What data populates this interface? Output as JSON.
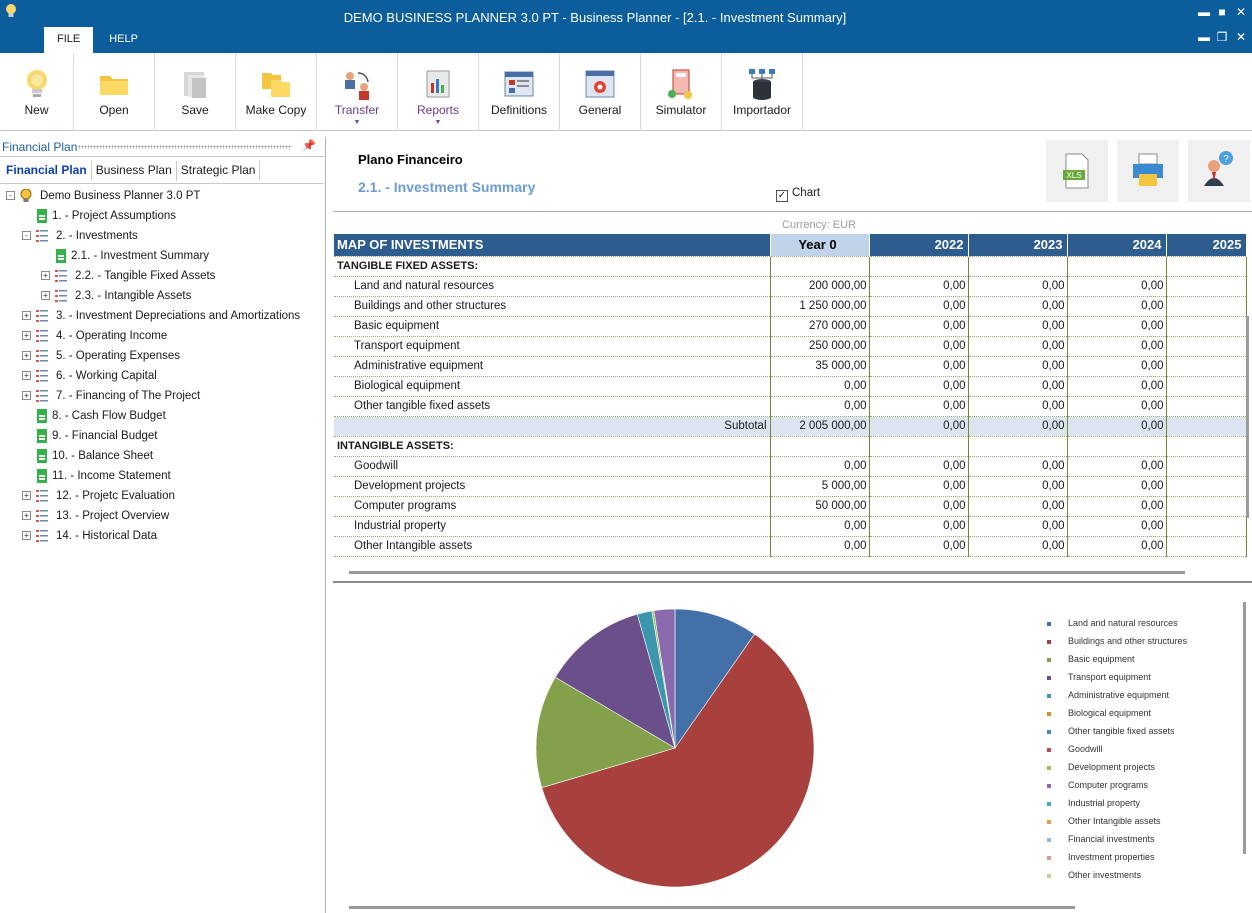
{
  "window": {
    "title": "DEMO BUSINESS PLANNER 3.0 PT - Business Planner - [2.1. - Investment Summary]",
    "menu_tabs": [
      "FILE",
      "HELP"
    ]
  },
  "ribbon": [
    {
      "label": "New",
      "icon": "lightbulb-icon"
    },
    {
      "label": "Open",
      "icon": "folder-icon"
    },
    {
      "label": "Save",
      "icon": "save-icon"
    },
    {
      "label": "Make Copy",
      "icon": "copy-icon"
    },
    {
      "label": "Transfer",
      "icon": "transfer-icon",
      "dropdown": true
    },
    {
      "label": "Reports",
      "icon": "reports-icon",
      "dropdown": true
    },
    {
      "label": "Definitions",
      "icon": "definitions-icon"
    },
    {
      "label": "General",
      "icon": "gear-icon"
    },
    {
      "label": "Simulator",
      "icon": "simulator-icon"
    },
    {
      "label": "Importador",
      "icon": "database-icon"
    }
  ],
  "left_panel": {
    "title": "Financial Plan",
    "tabs": [
      "Financial Plan",
      "Business Plan",
      "Strategic Plan"
    ],
    "tree": [
      {
        "label": "Demo Business Planner 3.0 PT",
        "level": 0,
        "expander": "-",
        "icon": "root"
      },
      {
        "label": "1. - Project Assumptions",
        "level": 1,
        "expander": "",
        "icon": "sheet"
      },
      {
        "label": "2. - Investments",
        "level": 1,
        "expander": "-",
        "icon": "list"
      },
      {
        "label": "2.1. - Investment Summary",
        "level": 2,
        "expander": "",
        "icon": "sheet"
      },
      {
        "label": "2.2. - Tangible Fixed Assets",
        "level": 2,
        "expander": "+",
        "icon": "list"
      },
      {
        "label": "2.3. - Intangible Assets",
        "level": 2,
        "expander": "+",
        "icon": "list"
      },
      {
        "label": "3. - Investment Depreciations and Amortizations",
        "level": 1,
        "expander": "+",
        "icon": "list"
      },
      {
        "label": "4. - Operating Income",
        "level": 1,
        "expander": "+",
        "icon": "list"
      },
      {
        "label": "5. - Operating Expenses",
        "level": 1,
        "expander": "+",
        "icon": "list"
      },
      {
        "label": "6. - Working Capital",
        "level": 1,
        "expander": "+",
        "icon": "list"
      },
      {
        "label": "7. - Financing of The Project",
        "level": 1,
        "expander": "+",
        "icon": "list"
      },
      {
        "label": "8. - Cash Flow Budget",
        "level": 1,
        "expander": "",
        "icon": "sheet"
      },
      {
        "label": "9. - Financial Budget",
        "level": 1,
        "expander": "",
        "icon": "sheet"
      },
      {
        "label": "10. - Balance Sheet",
        "level": 1,
        "expander": "",
        "icon": "sheet"
      },
      {
        "label": "11. - Income Statement",
        "level": 1,
        "expander": "",
        "icon": "sheet"
      },
      {
        "label": "12. - Projetc Evaluation",
        "level": 1,
        "expander": "+",
        "icon": "list"
      },
      {
        "label": "13. - Project Overview",
        "level": 1,
        "expander": "+",
        "icon": "list"
      },
      {
        "label": "14. - Historical Data",
        "level": 1,
        "expander": "+",
        "icon": "list"
      }
    ]
  },
  "content": {
    "title": "Plano Financeiro",
    "subtitle": "2.1. - Investment Summary",
    "chart_checkbox": "Chart",
    "header_buttons": [
      "xls-export-icon",
      "print-icon",
      "help-user-icon"
    ],
    "xls_label": "XLS"
  },
  "grid": {
    "currency": "Currency: EUR",
    "columns": [
      "MAP OF INVESTMENTS",
      "Year 0",
      "2022",
      "2023",
      "2024",
      "2025"
    ],
    "rows": [
      {
        "type": "section",
        "label": "TANGIBLE FIXED ASSETS:"
      },
      {
        "type": "row",
        "label": "Land and natural resources",
        "values": [
          "200 000,00",
          "0,00",
          "0,00",
          "0,00",
          ""
        ]
      },
      {
        "type": "row",
        "label": "Buildings and other structures",
        "values": [
          "1 250 000,00",
          "0,00",
          "0,00",
          "0,00",
          ""
        ]
      },
      {
        "type": "row",
        "label": "Basic equipment",
        "values": [
          "270 000,00",
          "0,00",
          "0,00",
          "0,00",
          ""
        ]
      },
      {
        "type": "row",
        "label": "Transport equipment",
        "values": [
          "250 000,00",
          "0,00",
          "0,00",
          "0,00",
          ""
        ]
      },
      {
        "type": "row",
        "label": "Administrative equipment",
        "values": [
          "35 000,00",
          "0,00",
          "0,00",
          "0,00",
          ""
        ]
      },
      {
        "type": "row",
        "label": "Biological equipment",
        "values": [
          "0,00",
          "0,00",
          "0,00",
          "0,00",
          ""
        ]
      },
      {
        "type": "row",
        "label": "Other tangible fixed assets",
        "values": [
          "0,00",
          "0,00",
          "0,00",
          "0,00",
          ""
        ]
      },
      {
        "type": "subtotal",
        "label": "Subtotal",
        "values": [
          "2 005 000,00",
          "0,00",
          "0,00",
          "0,00",
          ""
        ]
      },
      {
        "type": "section",
        "label": "INTANGIBLE ASSETS:"
      },
      {
        "type": "row",
        "label": "Goodwill",
        "values": [
          "0,00",
          "0,00",
          "0,00",
          "0,00",
          ""
        ]
      },
      {
        "type": "row",
        "label": "Development projects",
        "values": [
          "5 000,00",
          "0,00",
          "0,00",
          "0,00",
          ""
        ]
      },
      {
        "type": "row",
        "label": "Computer programs",
        "values": [
          "50 000,00",
          "0,00",
          "0,00",
          "0,00",
          ""
        ]
      },
      {
        "type": "row",
        "label": "Industrial property",
        "values": [
          "0,00",
          "0,00",
          "0,00",
          "0,00",
          ""
        ]
      },
      {
        "type": "row",
        "label": "Other Intangible assets",
        "values": [
          "0,00",
          "0,00",
          "0,00",
          "0,00",
          ""
        ]
      }
    ]
  },
  "chart_data": {
    "type": "pie",
    "title": "",
    "legend_position": "right",
    "slices": [
      {
        "label": "Land and natural resources",
        "value": 200000,
        "color": "#4370a8"
      },
      {
        "label": "Buildings and other structures",
        "value": 1250000,
        "color": "#a8403d"
      },
      {
        "label": "Basic equipment",
        "value": 270000,
        "color": "#83a04a"
      },
      {
        "label": "Transport equipment",
        "value": 250000,
        "color": "#6a4f8b"
      },
      {
        "label": "Administrative equipment",
        "value": 35000,
        "color": "#3c97ad"
      },
      {
        "label": "Biological equipment",
        "value": 0,
        "color": "#e08a30"
      },
      {
        "label": "Other tangible fixed assets",
        "value": 0,
        "color": "#4a86c0"
      },
      {
        "label": "Goodwill",
        "value": 0,
        "color": "#c04a48"
      },
      {
        "label": "Development projects",
        "value": 5000,
        "color": "#9cbc5a"
      },
      {
        "label": "Computer programs",
        "value": 50000,
        "color": "#8a6aac"
      },
      {
        "label": "Industrial property",
        "value": 0,
        "color": "#48a8c0"
      },
      {
        "label": "Other Intangible assets",
        "value": 0,
        "color": "#f09a40"
      },
      {
        "label": "Financial investments",
        "value": 0,
        "color": "#9ab4d8"
      },
      {
        "label": "Investment properties",
        "value": 0,
        "color": "#d89a98"
      },
      {
        "label": "Other investments",
        "value": 0,
        "color": "#c0d498"
      }
    ]
  }
}
